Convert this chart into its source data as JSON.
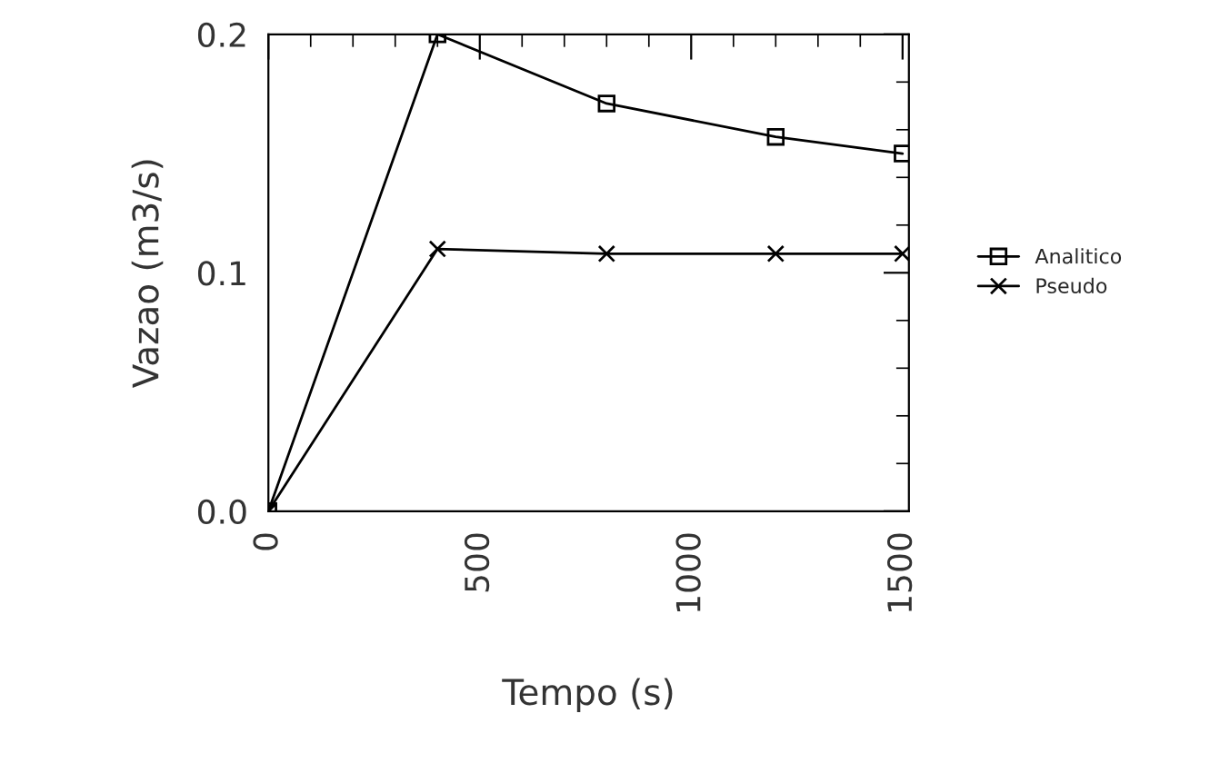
{
  "chart_data": {
    "type": "line",
    "xlabel": "Tempo (s)",
    "ylabel": "Vazao (m3/s)",
    "x": [
      0,
      400,
      800,
      1200,
      1500
    ],
    "series": [
      {
        "name": "Analitico",
        "color": "#000000",
        "marker": "square",
        "values": [
          0,
          0.2,
          0.171,
          0.157,
          0.15
        ]
      },
      {
        "name": "Pseudo",
        "color": "#000000",
        "marker": "cross",
        "values": [
          0,
          0.11,
          0.108,
          0.108,
          0.108
        ]
      }
    ],
    "xlim": [
      0,
      1515
    ],
    "xticks": [
      0,
      500,
      1000,
      1500
    ],
    "ylim": [
      0,
      0.2
    ],
    "yticks": [
      {
        "value": 0,
        "label": "0.0"
      },
      {
        "value": 0.1,
        "label": "0.1"
      },
      {
        "value": 0.2,
        "label": "0.2"
      }
    ],
    "legend": "right",
    "grid": false,
    "line_style": "solid"
  }
}
